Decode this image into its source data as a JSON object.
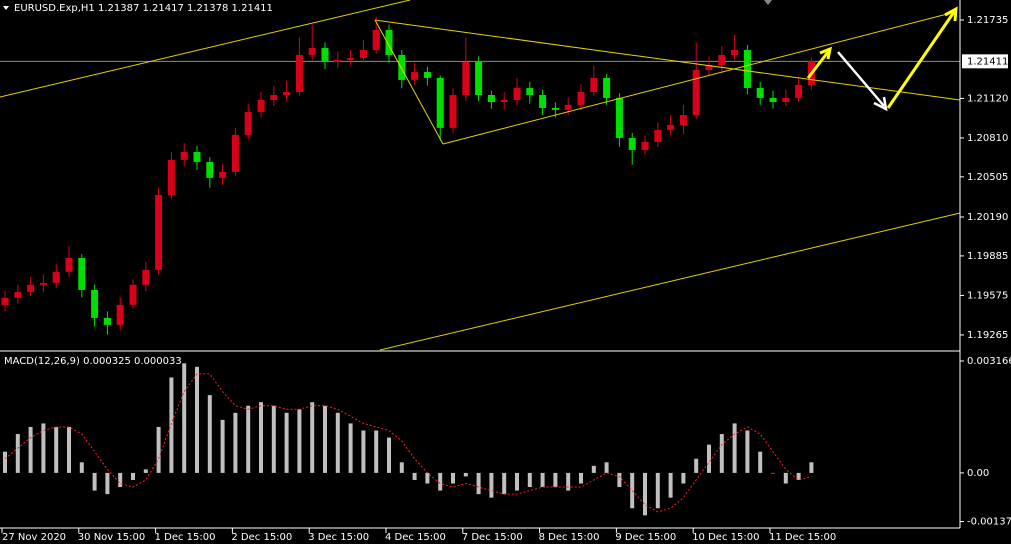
{
  "chart_data": [
    {
      "type": "candlestick",
      "title": "EURUSD.Exp,H1  1.21387 1.21417 1.21378 1.21411",
      "categories": [
        "27 Nov 2020",
        null,
        null,
        null,
        null,
        null,
        "30 Nov 15:00",
        null,
        null,
        null,
        null,
        null,
        "1 Dec 15:00",
        null,
        null,
        null,
        null,
        null,
        "2 Dec 15:00",
        null,
        null,
        null,
        null,
        null,
        "3 Dec 15:00",
        null,
        null,
        null,
        null,
        null,
        "4 Dec 15:00",
        null,
        null,
        null,
        null,
        null,
        "7 Dec 15:00",
        null,
        null,
        null,
        null,
        null,
        "8 Dec 15:00",
        null,
        null,
        null,
        null,
        null,
        "9 Dec 15:00",
        null,
        null,
        null,
        null,
        null,
        "10 Dec 15:00",
        null,
        null,
        null,
        null,
        null,
        "11 Dec 15:00",
        null,
        null,
        null
      ],
      "open": [
        1.195,
        1.19556,
        1.19603,
        1.19658,
        1.19673,
        1.1976,
        1.19869,
        1.19618,
        1.19399,
        1.19344,
        1.19501,
        1.19658,
        1.19775,
        1.20363,
        1.20638,
        1.207,
        1.20622,
        1.20497,
        1.20544,
        1.20834,
        1.21014,
        1.21108,
        1.21147,
        1.21171,
        1.21461,
        1.21516,
        1.21406,
        1.21422,
        1.21437,
        1.215,
        1.21657,
        1.21461,
        1.21265,
        1.21328,
        1.21281,
        1.20889,
        1.21147,
        1.21406,
        1.21147,
        1.21092,
        1.21108,
        1.21202,
        1.21147,
        1.21045,
        1.2103,
        1.21069,
        1.21171,
        1.21281,
        1.21124,
        1.2081,
        1.20716,
        1.20779,
        1.20873,
        1.20912,
        1.2099,
        1.21343,
        1.21382,
        1.21461,
        1.215,
        1.21202,
        1.21124,
        1.21092,
        1.21124,
        1.21226
      ],
      "high": [
        1.1961,
        1.1966,
        1.1972,
        1.1974,
        1.1982,
        1.1996,
        1.199,
        1.1966,
        1.1945,
        1.1956,
        1.197,
        1.1984,
        1.2042,
        1.207,
        1.2077,
        1.2075,
        1.2066,
        1.2061,
        1.2089,
        1.2108,
        1.2117,
        1.2122,
        1.2126,
        1.216,
        1.217,
        1.2156,
        1.2149,
        1.215,
        1.2158,
        1.2176,
        1.217,
        1.215,
        1.214,
        1.2137,
        1.213,
        1.212,
        1.216,
        1.2145,
        1.2118,
        1.2117,
        1.2128,
        1.2125,
        1.2119,
        1.2109,
        1.2113,
        1.2123,
        1.2138,
        1.2131,
        1.2116,
        1.2085,
        1.2083,
        1.2093,
        1.2099,
        1.2107,
        1.2156,
        1.2145,
        1.2153,
        1.2162,
        1.2154,
        1.2125,
        1.2118,
        1.2119,
        1.2129,
        1.2144
      ],
      "low": [
        1.1945,
        1.1951,
        1.1957,
        1.196,
        1.1963,
        1.1972,
        1.1956,
        1.1933,
        1.19265,
        1.193,
        1.1947,
        1.1961,
        1.1974,
        1.2033,
        1.2059,
        1.2056,
        1.2042,
        1.2044,
        1.2051,
        1.208,
        1.2097,
        1.2106,
        1.211,
        1.2114,
        1.2142,
        1.2135,
        1.2136,
        1.2138,
        1.214,
        1.2147,
        1.214,
        1.212,
        1.2123,
        1.2122,
        1.2079,
        1.2085,
        1.211,
        1.211,
        1.2104,
        1.2103,
        1.2106,
        1.2108,
        1.2099,
        1.2097,
        1.2099,
        1.2103,
        1.2114,
        1.2107,
        1.2074,
        1.206,
        1.2068,
        1.2074,
        1.2083,
        1.2084,
        1.2096,
        1.213,
        1.2133,
        1.2142,
        1.2115,
        1.2107,
        1.2104,
        1.2106,
        1.2109,
        1.2119
      ],
      "close": [
        1.19556,
        1.19603,
        1.19658,
        1.19673,
        1.1976,
        1.19869,
        1.19618,
        1.19399,
        1.19344,
        1.19501,
        1.19658,
        1.19775,
        1.20363,
        1.20638,
        1.207,
        1.20622,
        1.20497,
        1.20544,
        1.20834,
        1.21014,
        1.21108,
        1.21147,
        1.21171,
        1.21461,
        1.21516,
        1.21406,
        1.21422,
        1.21437,
        1.215,
        1.21657,
        1.21461,
        1.21265,
        1.21328,
        1.21281,
        1.20889,
        1.21147,
        1.21406,
        1.21147,
        1.21092,
        1.21108,
        1.21202,
        1.21147,
        1.21045,
        1.2103,
        1.21069,
        1.21171,
        1.21281,
        1.21124,
        1.2081,
        1.20716,
        1.20779,
        1.20873,
        1.20912,
        1.2099,
        1.21343,
        1.21382,
        1.21461,
        1.215,
        1.21202,
        1.21124,
        1.21092,
        1.21124,
        1.21226,
        1.21411
      ],
      "up_color": "#d8001a",
      "down_color": "#00e000",
      "current_price": 1.21411,
      "ylim": [
        1.19147,
        1.21892
      ],
      "yticks": [
        1.21735,
        {
          "value": 1.2112,
          "label": "1.21120"
        },
        {
          "value": 1.2081,
          "label": "1.20810"
        },
        1.20505,
        {
          "value": 1.2019,
          "label": "1.20190"
        },
        1.19885,
        1.19575,
        1.19265
      ]
    },
    {
      "type": "macd",
      "title": "MACD(12,26,9) 0.000325 0.000033",
      "histogram": {
        "color": "#c0c0c0",
        "values": [
          0.0006,
          0.0011,
          0.0013,
          0.0014,
          0.0013,
          0.0013,
          0.0003,
          -0.0005,
          -0.0006,
          -0.0004,
          -0.0002,
          0.0001,
          0.0013,
          0.0027,
          0.0031,
          0.003,
          0.0022,
          0.0015,
          0.0017,
          0.0019,
          0.002,
          0.0019,
          0.0017,
          0.0018,
          0.002,
          0.0019,
          0.0017,
          0.0014,
          0.0012,
          0.0012,
          0.001,
          0.0003,
          -0.0002,
          -0.0003,
          -0.0005,
          -0.0003,
          -0.0001,
          -0.0006,
          -0.0007,
          -0.0006,
          -0.0005,
          -0.0004,
          -0.0004,
          -0.0004,
          -0.0005,
          -0.0003,
          0.0002,
          0.0003,
          -0.0004,
          -0.001,
          -0.0012,
          -0.001,
          -0.0007,
          -0.0003,
          0.0004,
          0.0008,
          0.0011,
          0.0014,
          0.0012,
          0.0006,
          0,
          -0.0003,
          -0.0002,
          0.0003
        ]
      },
      "signal": {
        "color": "#ff2020",
        "values": [
          0.0004,
          0.0007,
          0.001,
          0.0012,
          0.0013,
          0.0013,
          0.0011,
          0.0006,
          0.0001,
          -0.0003,
          -0.0004,
          -0.0002,
          0.0004,
          0.0014,
          0.0023,
          0.0028,
          0.0028,
          0.0023,
          0.0019,
          0.0018,
          0.0019,
          0.0019,
          0.0018,
          0.0018,
          0.0019,
          0.0019,
          0.0018,
          0.0016,
          0.0014,
          0.0013,
          0.0012,
          0.0009,
          0.0004,
          0,
          -0.0003,
          -0.0004,
          -0.0003,
          -0.0004,
          -0.0005,
          -0.0006,
          -0.0006,
          -0.0005,
          -0.0004,
          -0.0004,
          -0.0004,
          -0.0004,
          -0.0002,
          0,
          -0.0001,
          -0.0005,
          -0.0009,
          -0.0011,
          -0.001,
          -0.0007,
          -0.0002,
          0.0003,
          0.0008,
          0.0011,
          0.0013,
          0.0011,
          0.0006,
          0.0001,
          -0.0002,
          -0.0001
        ]
      },
      "ylim": [
        -0.00153,
        0.00342
      ],
      "yticks": [
        0.003166,
        {
          "value": 0,
          "label": "0.00"
        },
        -0.001376
      ]
    }
  ]
}
